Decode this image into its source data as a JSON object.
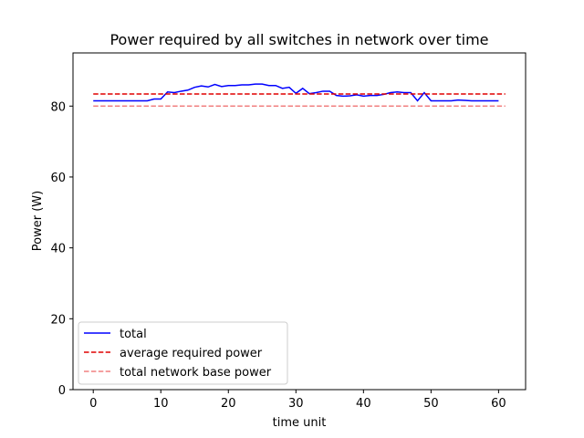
{
  "chart_data": {
    "type": "line",
    "title": "Power required by all switches in network over time",
    "xlabel": "time unit",
    "ylabel": "Power (W)",
    "xlim": [
      -3,
      64
    ],
    "ylim": [
      0,
      95
    ],
    "xticks": [
      0,
      10,
      20,
      30,
      40,
      50,
      60
    ],
    "yticks": [
      0,
      20,
      40,
      60,
      80
    ],
    "grid": false,
    "legend_position": "lower-left",
    "series": [
      {
        "name": "total",
        "style": "solid",
        "color": "#0000ff",
        "x": [
          0,
          1,
          2,
          3,
          4,
          5,
          6,
          7,
          8,
          9,
          10,
          11,
          12,
          13,
          14,
          15,
          16,
          17,
          18,
          19,
          20,
          21,
          22,
          23,
          24,
          25,
          26,
          27,
          28,
          29,
          30,
          31,
          32,
          33,
          34,
          35,
          36,
          37,
          38,
          39,
          40,
          41,
          42,
          43,
          44,
          45,
          46,
          47,
          48,
          49,
          50,
          51,
          52,
          53,
          54,
          55,
          56,
          57,
          58,
          59,
          60
        ],
        "y": [
          81.5,
          81.5,
          81.5,
          81.5,
          81.5,
          81.5,
          81.5,
          81.5,
          81.5,
          82.0,
          82.0,
          84.0,
          83.8,
          84.2,
          84.5,
          85.3,
          85.7,
          85.4,
          86.1,
          85.5,
          85.8,
          85.8,
          86.0,
          86.0,
          86.2,
          86.2,
          85.8,
          85.8,
          85.0,
          85.3,
          83.6,
          85.0,
          83.5,
          83.8,
          84.2,
          84.2,
          83.0,
          82.8,
          82.9,
          83.2,
          82.8,
          83.0,
          83.0,
          83.3,
          83.8,
          84.0,
          83.8,
          83.8,
          81.5,
          83.8,
          81.5,
          81.5,
          81.5,
          81.5,
          81.7,
          81.6,
          81.5,
          81.5,
          81.5,
          81.5,
          81.5
        ]
      },
      {
        "name": "average required power",
        "style": "dashed",
        "color": "#e00000",
        "x": [
          0,
          61
        ],
        "y": [
          83.4,
          83.4
        ]
      },
      {
        "name": "total network base power",
        "style": "dashed",
        "color": "#f08080",
        "x": [
          0,
          61
        ],
        "y": [
          80.0,
          80.0
        ]
      }
    ]
  }
}
